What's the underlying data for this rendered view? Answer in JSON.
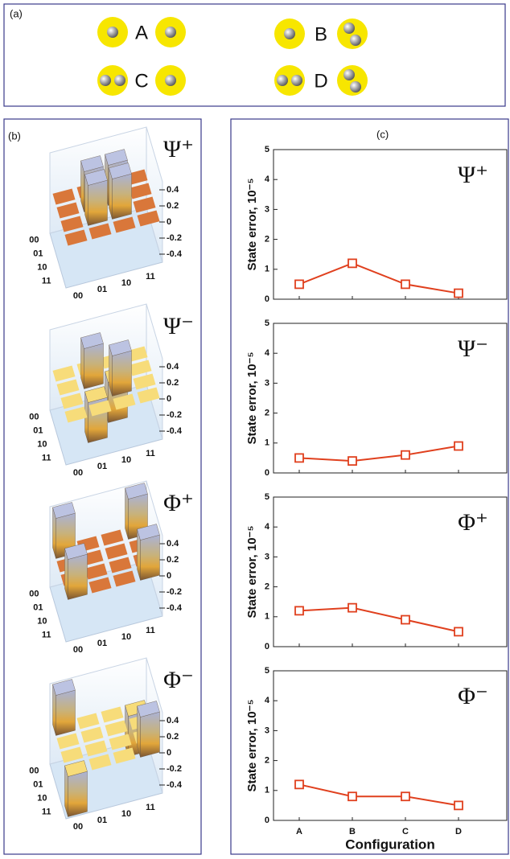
{
  "panels": {
    "a": "(a)",
    "b": "(b)",
    "c": "(c)"
  },
  "configurations": [
    {
      "label": "A",
      "balls": [
        1,
        1
      ]
    },
    {
      "label": "B",
      "balls": [
        1,
        2
      ]
    },
    {
      "label": "C",
      "balls": [
        2,
        1
      ]
    },
    {
      "label": "D",
      "balls": [
        2,
        2
      ]
    }
  ],
  "chart_data": [
    {
      "type": "bar3d",
      "title": "Ψ⁺",
      "rows": [
        "00",
        "01",
        "10",
        "11"
      ],
      "columns": [
        "00",
        "01",
        "10",
        "11"
      ],
      "values": [
        [
          0,
          0,
          0,
          0
        ],
        [
          0,
          0.5,
          0.5,
          0
        ],
        [
          0,
          0.5,
          0.5,
          0
        ],
        [
          0,
          0,
          0,
          0
        ]
      ],
      "zlim": [
        -0.5,
        0.5
      ],
      "zticks": [
        0.4,
        0.2,
        0,
        -0.2,
        -0.4
      ],
      "tile_color": "#d9773a"
    },
    {
      "type": "bar3d",
      "title": "Ψ⁻",
      "rows": [
        "00",
        "01",
        "10",
        "11"
      ],
      "columns": [
        "00",
        "01",
        "10",
        "11"
      ],
      "values": [
        [
          0,
          0,
          0,
          0
        ],
        [
          0,
          0.5,
          -0.5,
          0
        ],
        [
          0,
          -0.5,
          0.5,
          0
        ],
        [
          0,
          0,
          0,
          0
        ]
      ],
      "zlim": [
        -0.5,
        0.5
      ],
      "zticks": [
        0.4,
        0.2,
        0,
        -0.2,
        -0.4
      ],
      "tile_color": "#f7dc7a"
    },
    {
      "type": "bar3d",
      "title": "Φ⁺",
      "rows": [
        "00",
        "01",
        "10",
        "11"
      ],
      "columns": [
        "00",
        "01",
        "10",
        "11"
      ],
      "values": [
        [
          0.5,
          0,
          0,
          0.5
        ],
        [
          0,
          0,
          0,
          0
        ],
        [
          0,
          0,
          0,
          0
        ],
        [
          0.5,
          0,
          0,
          0.5
        ]
      ],
      "zlim": [
        -0.5,
        0.5
      ],
      "zticks": [
        0.4,
        0.2,
        0,
        -0.2,
        -0.4
      ],
      "tile_color": "#d9773a"
    },
    {
      "type": "bar3d",
      "title": "Φ⁻",
      "rows": [
        "00",
        "01",
        "10",
        "11"
      ],
      "columns": [
        "00",
        "01",
        "10",
        "11"
      ],
      "values": [
        [
          0.5,
          0,
          0,
          -0.5
        ],
        [
          0,
          0,
          0,
          0
        ],
        [
          0,
          0,
          0,
          0
        ],
        [
          -0.5,
          0,
          0,
          0.5
        ]
      ],
      "zlim": [
        -0.5,
        0.5
      ],
      "zticks": [
        0.4,
        0.2,
        0,
        -0.2,
        -0.4
      ],
      "tile_color": "#f7dc7a"
    },
    {
      "type": "line",
      "title": "Ψ⁺",
      "y_label": "State error, 10⁻⁵",
      "ylim": [
        0,
        5
      ],
      "yticks": [
        0,
        1,
        2,
        3,
        4,
        5
      ],
      "series": [
        {
          "color": "#e0401e",
          "values": [
            0.5,
            1.2,
            0.5,
            0.2
          ]
        }
      ]
    },
    {
      "type": "line",
      "title": "Ψ⁻",
      "y_label": "State error, 10⁻⁵",
      "ylim": [
        0,
        5
      ],
      "yticks": [
        0,
        1,
        2,
        3,
        4,
        5
      ],
      "series": [
        {
          "color": "#e0401e",
          "values": [
            0.5,
            0.4,
            0.6,
            0.9
          ]
        }
      ]
    },
    {
      "type": "line",
      "title": "Φ⁺",
      "y_label": "State error, 10⁻⁵",
      "ylim": [
        0,
        5
      ],
      "yticks": [
        0,
        1,
        2,
        3,
        4,
        5
      ],
      "series": [
        {
          "color": "#e0401e",
          "values": [
            1.2,
            1.3,
            0.9,
            0.5
          ]
        }
      ]
    },
    {
      "type": "line",
      "title": "Φ⁻",
      "y_label": "State error, 10⁻⁵",
      "x_label": "Configuration",
      "ylim": [
        0,
        5
      ],
      "yticks": [
        0,
        1,
        2,
        3,
        4,
        5
      ],
      "categories": [
        "A",
        "B",
        "C",
        "D"
      ],
      "series": [
        {
          "color": "#e0401e",
          "values": [
            1.2,
            0.8,
            0.8,
            0.5
          ]
        }
      ]
    }
  ]
}
